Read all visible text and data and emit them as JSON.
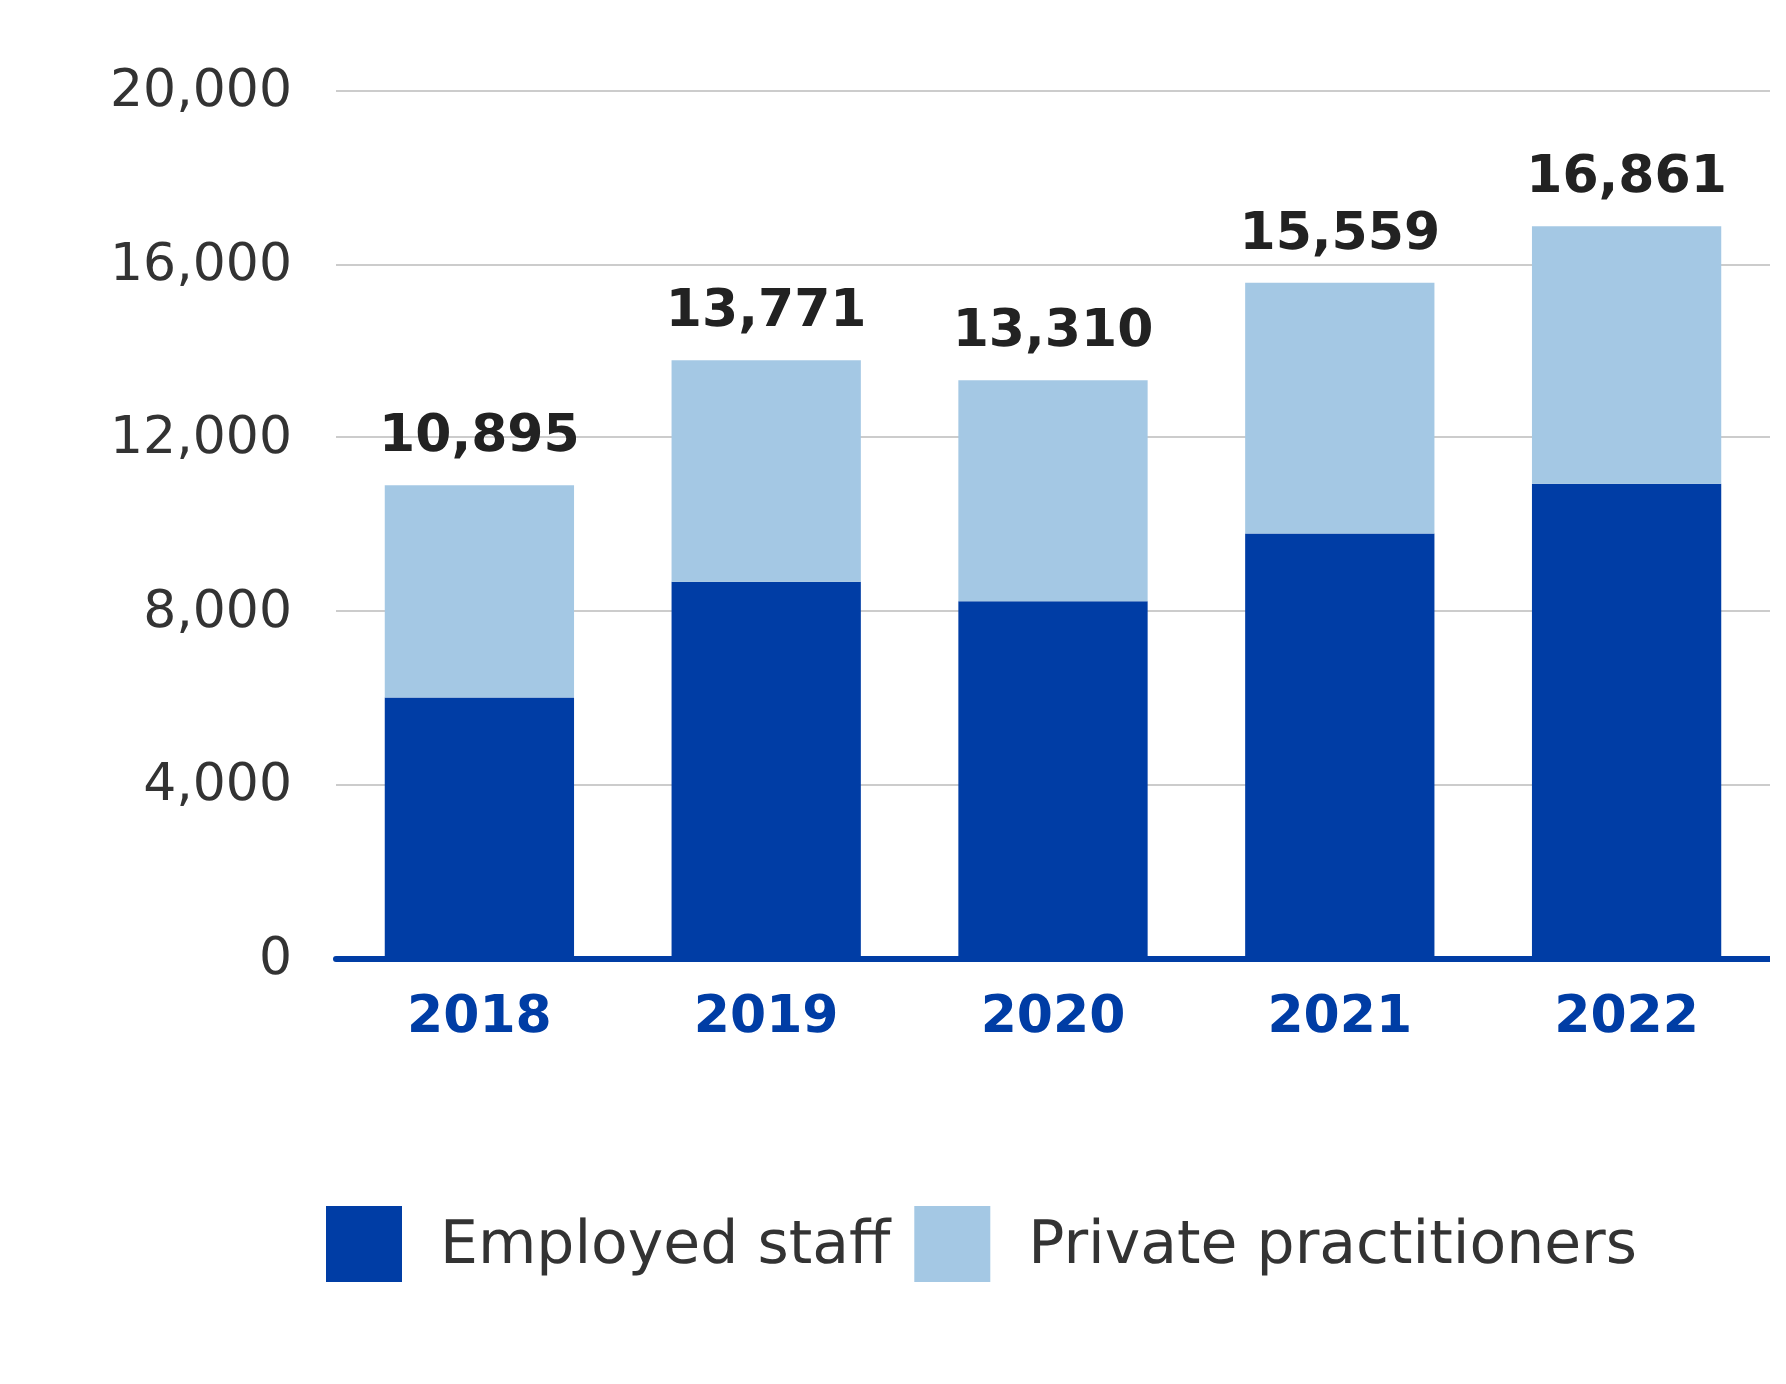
{
  "chart_data": {
    "type": "bar",
    "stacked": true,
    "categories": [
      "2018",
      "2019",
      "2020",
      "2021",
      "2022"
    ],
    "series": [
      {
        "name": "Employed staff",
        "color": "#003da5",
        "values": [
          6000,
          8670,
          8220,
          9780,
          10930
        ]
      },
      {
        "name": "Private practitioners",
        "color": "#a4c8e4",
        "values": [
          4895,
          5101,
          5090,
          5779,
          5931
        ]
      }
    ],
    "totals": [
      "10,895",
      "13,771",
      "13,310",
      "15,559",
      "16,861"
    ],
    "ylim": [
      0,
      20000
    ],
    "yticks": [
      {
        "value": 0,
        "label": "0"
      },
      {
        "value": 4000,
        "label": "4,000"
      },
      {
        "value": 8000,
        "label": "8,000"
      },
      {
        "value": 12000,
        "label": "12,000"
      },
      {
        "value": 16000,
        "label": "16,000"
      },
      {
        "value": 20000,
        "label": "20,000"
      }
    ],
    "grid": "y",
    "legend": "bottom left"
  }
}
